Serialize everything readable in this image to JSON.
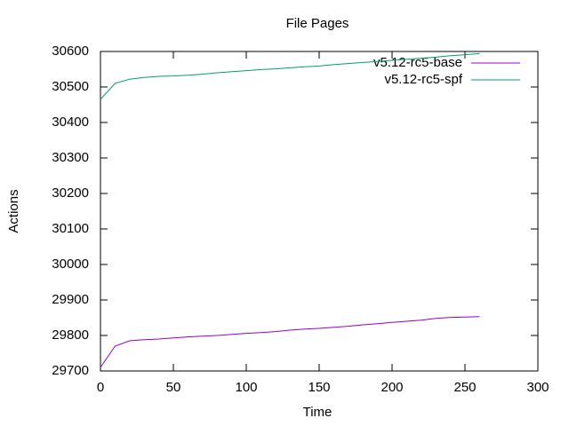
{
  "chart_data": {
    "type": "line",
    "title": "File Pages",
    "x_label": "Time",
    "y_label": "Actions",
    "x": [
      0,
      10,
      20,
      30,
      40,
      50,
      60,
      70,
      80,
      90,
      100,
      110,
      120,
      130,
      140,
      150,
      160,
      170,
      180,
      190,
      200,
      210,
      220,
      230,
      240,
      250,
      260
    ],
    "series": [
      {
        "name": "v5.12-rc5-base",
        "color": "#9400d3",
        "values": [
          29710,
          29770,
          29785,
          29788,
          29790,
          29793,
          29796,
          29798,
          29800,
          29803,
          29806,
          29808,
          29811,
          29815,
          29818,
          29820,
          29823,
          29826,
          29830,
          29833,
          29837,
          29840,
          29843,
          29848,
          29851,
          29852,
          29853
        ]
      },
      {
        "name": "v5.12-rc5-spf",
        "color": "#009e73",
        "values": [
          30465,
          30510,
          30522,
          30527,
          30530,
          30531,
          30533,
          30536,
          30540,
          30543,
          30546,
          30549,
          30551,
          30554,
          30557,
          30559,
          30563,
          30566,
          30569,
          30572,
          30575,
          30578,
          30581,
          30584,
          30588,
          30591,
          30594
        ]
      }
    ],
    "xlim": [
      0,
      300
    ],
    "xticks": [
      0,
      50,
      100,
      150,
      200,
      250,
      300
    ],
    "ylim": [
      29700,
      30600
    ],
    "yticks": [
      29700,
      29800,
      29900,
      30000,
      30100,
      30200,
      30300,
      30400,
      30500,
      30600
    ],
    "legend": "top-right"
  }
}
